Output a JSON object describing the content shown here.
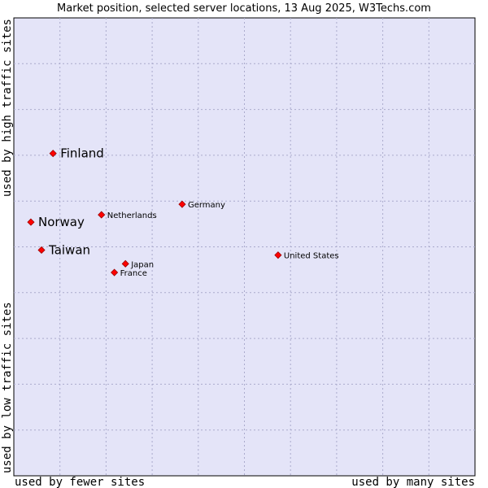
{
  "chart_data": {
    "type": "scatter",
    "title": "Market position, selected server locations, 13 Aug 2025, W3Techs.com",
    "xlabel_low": "used by fewer sites",
    "xlabel_high": "used by many sites",
    "ylabel_high": "used by high traffic sites",
    "ylabel_low": "used by low traffic sites",
    "xlim": [
      0,
      100
    ],
    "ylim": [
      0,
      100
    ],
    "grid": true,
    "points": [
      {
        "name": "Finland",
        "x": 8.5,
        "y": 70.4,
        "emphasis": true
      },
      {
        "name": "Norway",
        "x": 3.7,
        "y": 55.4,
        "emphasis": true
      },
      {
        "name": "Taiwan",
        "x": 6.0,
        "y": 49.3,
        "emphasis": true
      },
      {
        "name": "Germany",
        "x": 36.5,
        "y": 59.3,
        "emphasis": false
      },
      {
        "name": "Netherlands",
        "x": 19.0,
        "y": 57.0,
        "emphasis": false
      },
      {
        "name": "United States",
        "x": 57.3,
        "y": 48.2,
        "emphasis": false
      },
      {
        "name": "Japan",
        "x": 24.2,
        "y": 46.3,
        "emphasis": false
      },
      {
        "name": "France",
        "x": 21.8,
        "y": 44.4,
        "emphasis": false
      }
    ]
  },
  "colors": {
    "plot_background": "#e4e4f8",
    "grid": "#aaaacc",
    "marker": "#ff0000",
    "marker_outline": "#990000"
  }
}
